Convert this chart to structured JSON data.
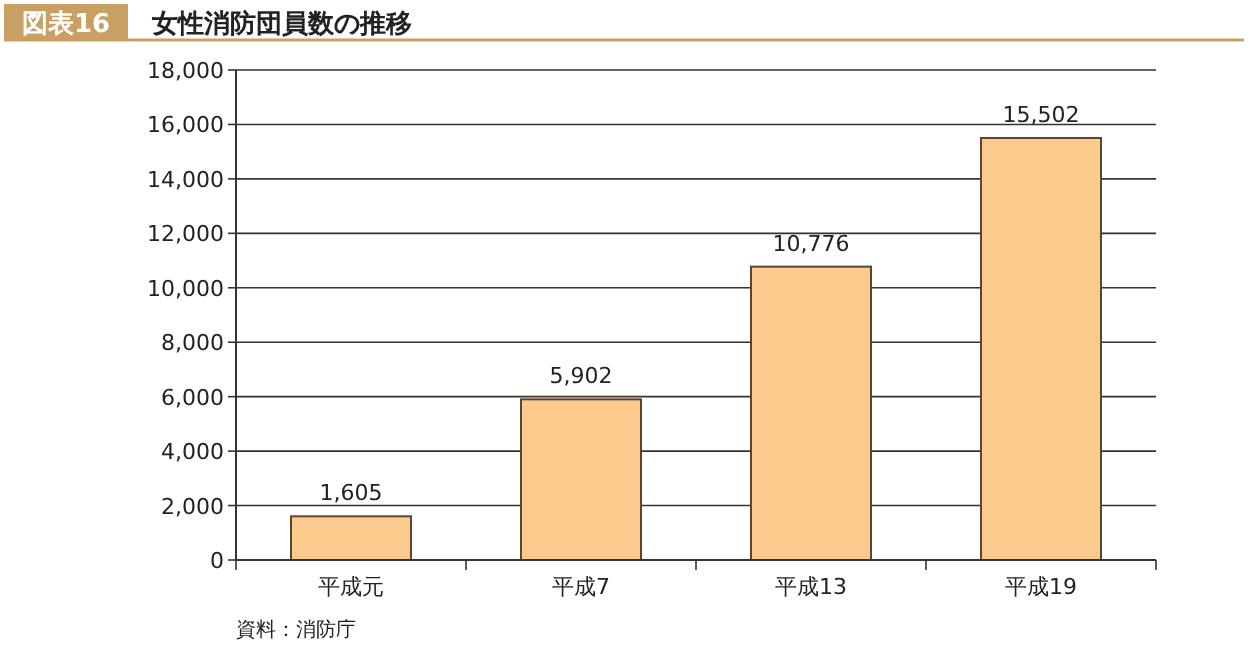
{
  "chart_data": {
    "type": "bar",
    "title": "女性消防団員数の推移",
    "annotations": [
      "図表16",
      "資料：消防庁"
    ],
    "categories": [
      "平成元",
      "平成7",
      "平成13",
      "平成19"
    ],
    "values": [
      1605,
      5902,
      10776,
      15502
    ],
    "value_labels": [
      "1,605",
      "5,902",
      "10,776",
      "15,502"
    ],
    "color": "#fdca8e",
    "ylim": [
      0,
      18000
    ],
    "yticks": [
      {
        "value": 0,
        "label": "0"
      },
      {
        "value": 2000,
        "label": "2,000"
      },
      {
        "value": 4000,
        "label": "4,000"
      },
      {
        "value": 6000,
        "label": "6,000"
      },
      {
        "value": 8000,
        "label": "8,000"
      },
      {
        "value": 10000,
        "label": "10,000"
      },
      {
        "value": 12000,
        "label": "12,000"
      },
      {
        "value": 14000,
        "label": "14,000"
      },
      {
        "value": 16000,
        "label": "16,000"
      },
      {
        "value": 18000,
        "label": "18,000"
      }
    ],
    "grid": "y"
  }
}
